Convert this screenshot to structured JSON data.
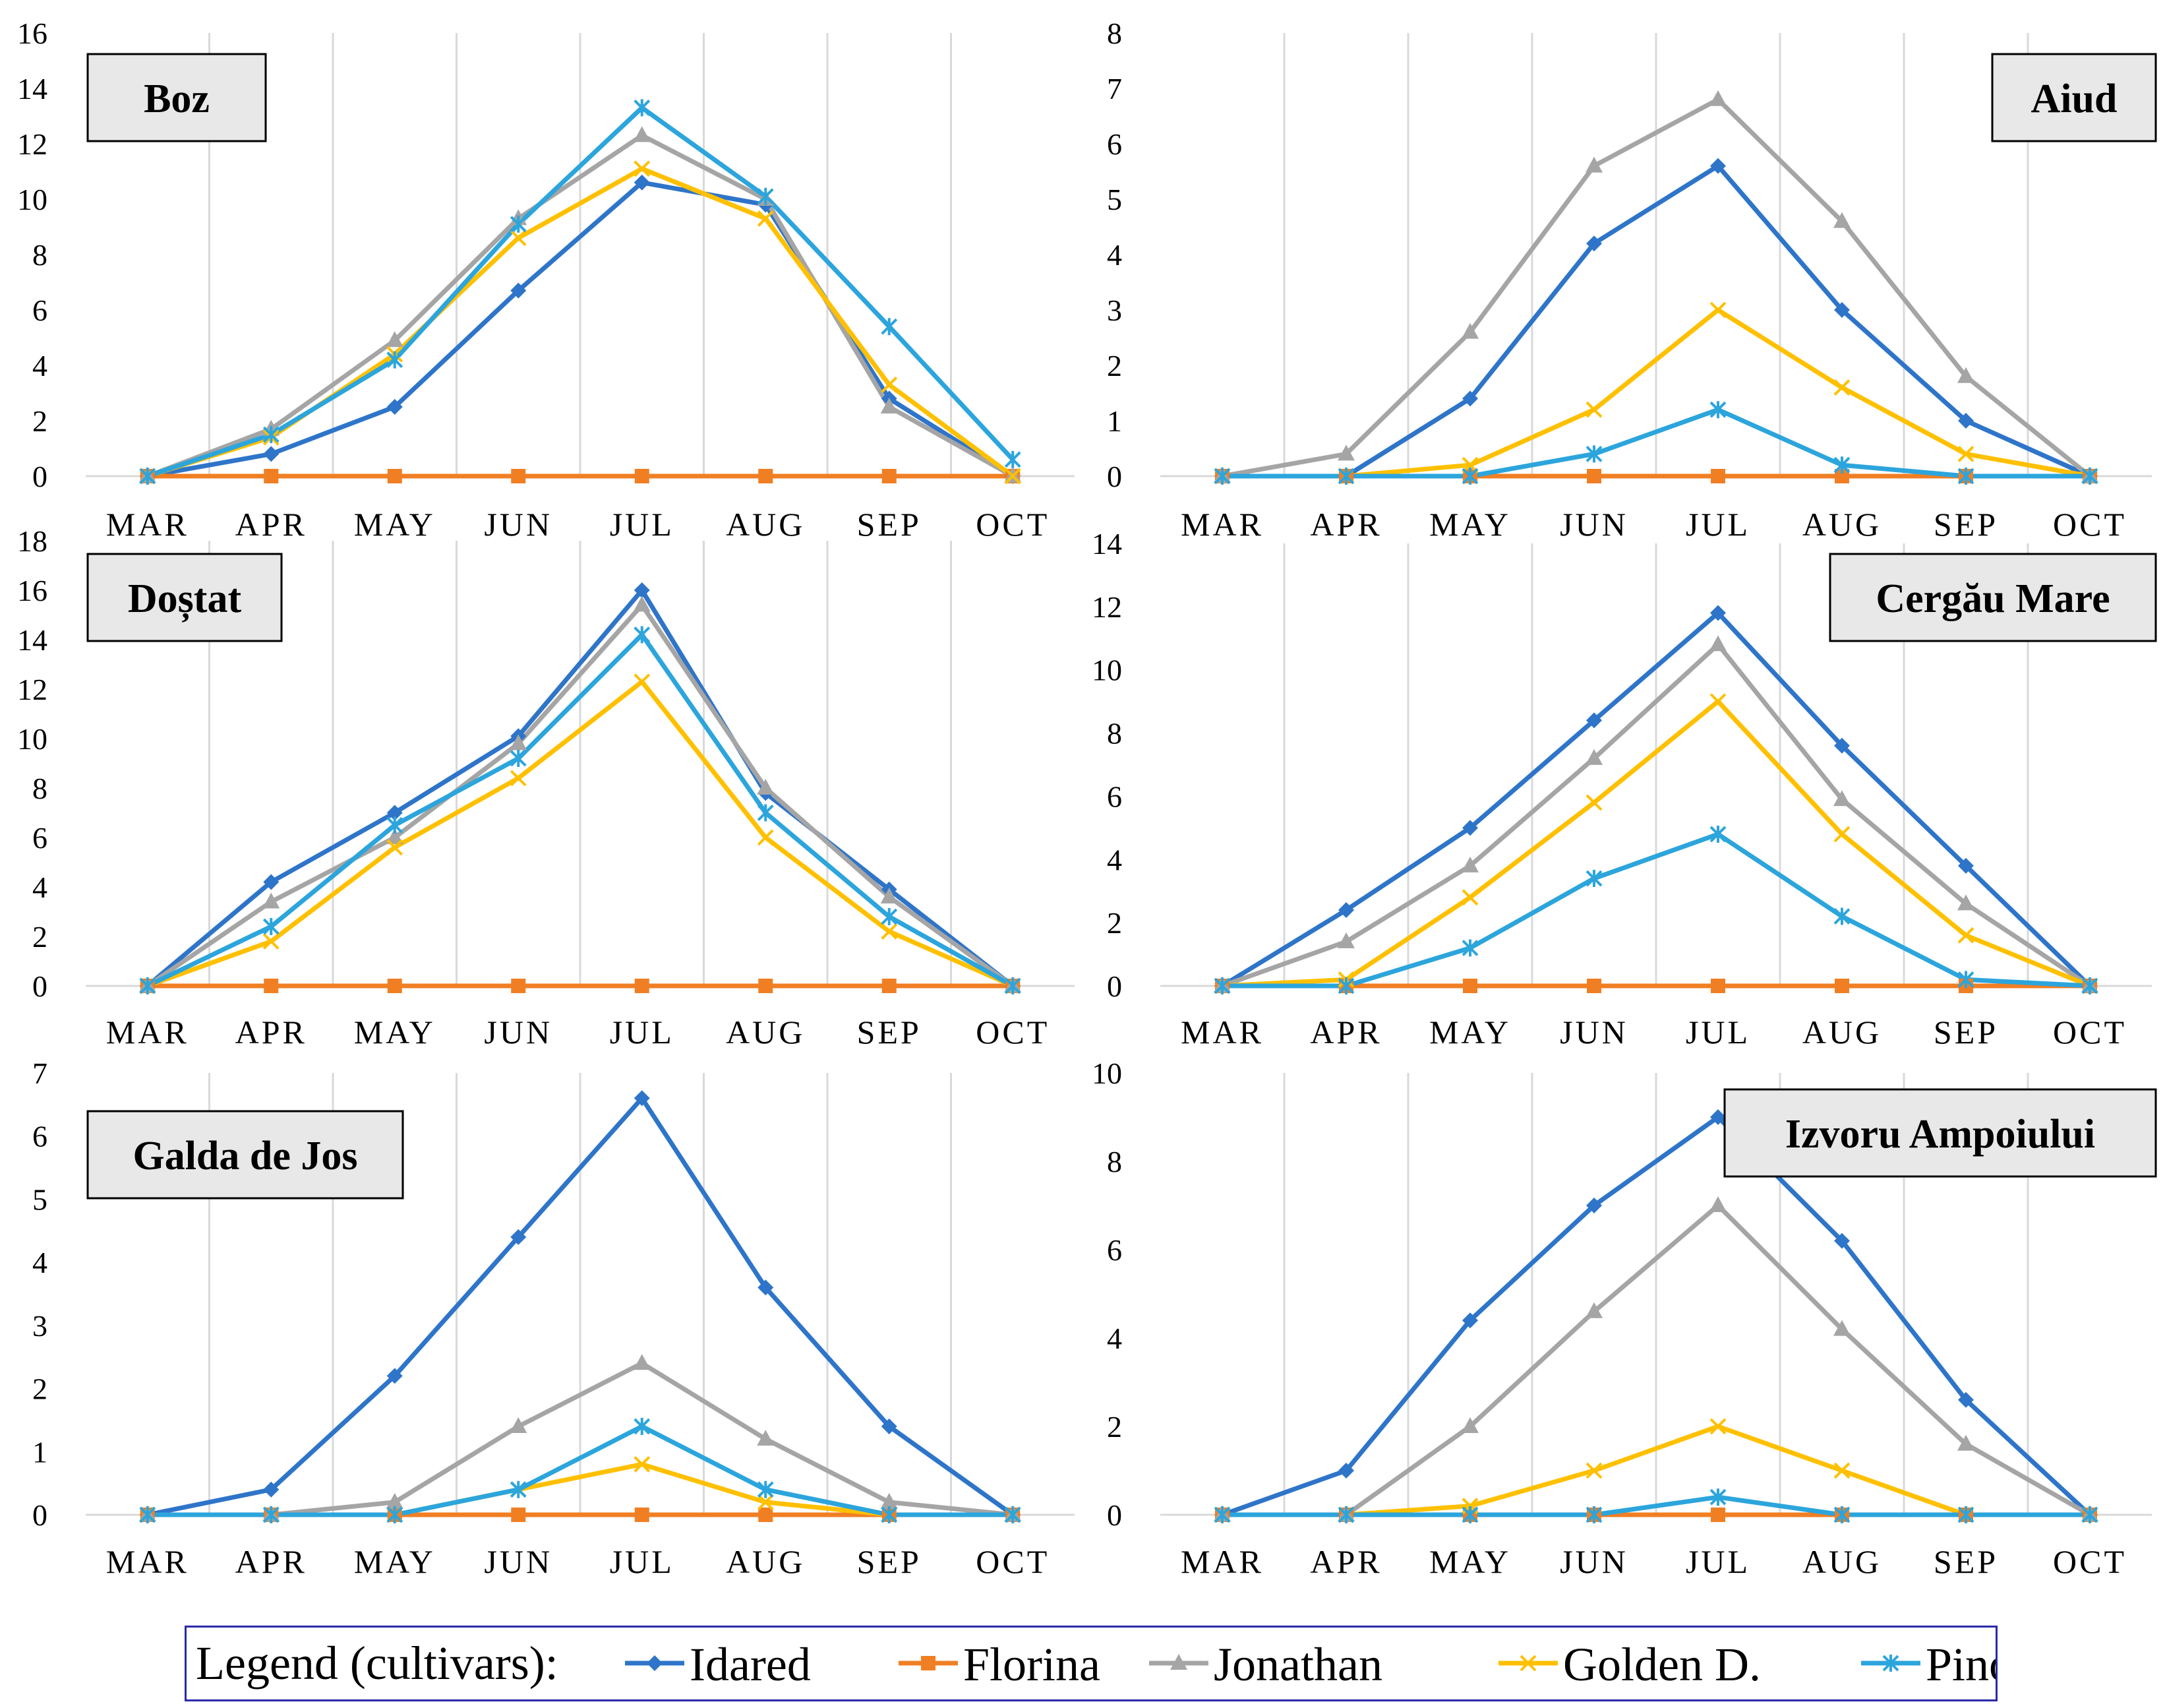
{
  "legend": {
    "label": "Legend (cultivars):",
    "items": [
      {
        "name": "Idared",
        "color": "#2E75C9",
        "marker": "diamond"
      },
      {
        "name": "Florina",
        "color": "#F07F24",
        "marker": "square"
      },
      {
        "name": "Jonathan",
        "color": "#A5A5A5",
        "marker": "triangle"
      },
      {
        "name": "Golden D.",
        "color": "#FFC000",
        "marker": "x"
      },
      {
        "name": "Pinova",
        "color": "#2CA5DC",
        "marker": "star"
      }
    ]
  },
  "chart_data": [
    {
      "type": "line",
      "title": "Boz",
      "categories": [
        "MAR",
        "APR",
        "MAY",
        "JUN",
        "JUL",
        "AUG",
        "SEP",
        "OCT"
      ],
      "ylim": [
        0,
        16
      ],
      "yticks": [
        "0",
        "2",
        "4",
        "6",
        "8",
        "10",
        "12",
        "14",
        "16"
      ],
      "series": [
        {
          "name": "Idared",
          "values": [
            0,
            0.8,
            2.5,
            6.7,
            10.6,
            9.8,
            2.8,
            0
          ]
        },
        {
          "name": "Florina",
          "values": [
            0,
            0,
            0,
            0,
            0,
            0,
            0,
            0
          ]
        },
        {
          "name": "Jonathan",
          "values": [
            0,
            1.7,
            4.9,
            9.3,
            12.3,
            10.0,
            2.5,
            0
          ]
        },
        {
          "name": "Golden D.",
          "values": [
            0,
            1.4,
            4.4,
            8.6,
            11.1,
            9.3,
            3.3,
            0
          ]
        },
        {
          "name": "Pinova",
          "values": [
            0,
            1.5,
            4.2,
            9.1,
            13.3,
            10.1,
            5.4,
            0.6
          ]
        }
      ]
    },
    {
      "type": "line",
      "title": "Aiud",
      "categories": [
        "MAR",
        "APR",
        "MAY",
        "JUN",
        "JUL",
        "AUG",
        "SEP",
        "OCT"
      ],
      "ylim": [
        0,
        8
      ],
      "yticks": [
        "0",
        "1",
        "2",
        "3",
        "4",
        "5",
        "6",
        "7",
        "8"
      ],
      "series": [
        {
          "name": "Idared",
          "values": [
            0,
            0,
            1.4,
            4.2,
            5.6,
            3.0,
            1.0,
            0
          ]
        },
        {
          "name": "Florina",
          "values": [
            0,
            0,
            0,
            0,
            0,
            0,
            0,
            0
          ]
        },
        {
          "name": "Jonathan",
          "values": [
            0,
            0.4,
            2.6,
            5.6,
            6.8,
            4.6,
            1.8,
            0
          ]
        },
        {
          "name": "Golden D.",
          "values": [
            0,
            0,
            0.2,
            1.2,
            3.0,
            1.6,
            0.4,
            0
          ]
        },
        {
          "name": "Pinova",
          "values": [
            0,
            0,
            0,
            0.4,
            1.2,
            0.2,
            0,
            0
          ]
        }
      ]
    },
    {
      "type": "line",
      "title": "Doștat",
      "categories": [
        "MAR",
        "APR",
        "MAY",
        "JUN",
        "JUL",
        "AUG",
        "SEP",
        "OCT"
      ],
      "ylim": [
        0,
        18
      ],
      "yticks": [
        "0",
        "2",
        "4",
        "6",
        "8",
        "10",
        "12",
        "14",
        "16",
        "18"
      ],
      "series": [
        {
          "name": "Idared",
          "values": [
            0,
            4.2,
            7.0,
            10.1,
            16.0,
            7.8,
            3.9,
            0
          ]
        },
        {
          "name": "Florina",
          "values": [
            0,
            0,
            0,
            0,
            0,
            0,
            0,
            0
          ]
        },
        {
          "name": "Jonathan",
          "values": [
            0,
            3.4,
            6.0,
            9.8,
            15.4,
            8.0,
            3.6,
            0
          ]
        },
        {
          "name": "Golden D.",
          "values": [
            0,
            1.8,
            5.6,
            8.4,
            12.3,
            6.0,
            2.2,
            0
          ]
        },
        {
          "name": "Pinova",
          "values": [
            0,
            2.4,
            6.5,
            9.2,
            14.2,
            7.0,
            2.8,
            0
          ]
        }
      ]
    },
    {
      "type": "line",
      "title": "Cergău Mare",
      "categories": [
        "MAR",
        "APR",
        "MAY",
        "JUN",
        "JUL",
        "AUG",
        "SEP",
        "OCT"
      ],
      "ylim": [
        0,
        14
      ],
      "yticks": [
        "0",
        "2",
        "4",
        "6",
        "8",
        "10",
        "12",
        "14"
      ],
      "series": [
        {
          "name": "Idared",
          "values": [
            0,
            2.4,
            5.0,
            8.4,
            11.8,
            7.6,
            3.8,
            0
          ]
        },
        {
          "name": "Florina",
          "values": [
            0,
            0,
            0,
            0,
            0,
            0,
            0,
            0
          ]
        },
        {
          "name": "Jonathan",
          "values": [
            0,
            1.4,
            3.8,
            7.2,
            10.8,
            5.9,
            2.6,
            0
          ]
        },
        {
          "name": "Golden D.",
          "values": [
            0,
            0.2,
            2.8,
            5.8,
            9.0,
            4.8,
            1.6,
            0
          ]
        },
        {
          "name": "Pinova",
          "values": [
            0,
            0,
            1.2,
            3.4,
            4.8,
            2.2,
            0.2,
            0
          ]
        }
      ]
    },
    {
      "type": "line",
      "title": "Galda de Jos",
      "categories": [
        "MAR",
        "APR",
        "MAY",
        "JUN",
        "JUL",
        "AUG",
        "SEP",
        "OCT"
      ],
      "ylim": [
        0,
        7
      ],
      "yticks": [
        "0",
        "1",
        "2",
        "3",
        "4",
        "5",
        "6",
        "7"
      ],
      "series": [
        {
          "name": "Idared",
          "values": [
            0,
            0.4,
            2.2,
            4.4,
            6.6,
            3.6,
            1.4,
            0
          ]
        },
        {
          "name": "Florina",
          "values": [
            0,
            0,
            0,
            0,
            0,
            0,
            0,
            0
          ]
        },
        {
          "name": "Jonathan",
          "values": [
            0,
            0,
            0.2,
            1.4,
            2.4,
            1.2,
            0.2,
            0
          ]
        },
        {
          "name": "Golden D.",
          "values": [
            0,
            0,
            0,
            0.4,
            0.8,
            0.2,
            0,
            0
          ]
        },
        {
          "name": "Pinova",
          "values": [
            0,
            0,
            0,
            0.4,
            1.4,
            0.4,
            0,
            0
          ]
        }
      ]
    },
    {
      "type": "line",
      "title": "Izvoru Ampoiului",
      "categories": [
        "MAR",
        "APR",
        "MAY",
        "JUN",
        "JUL",
        "AUG",
        "SEP",
        "OCT"
      ],
      "ylim": [
        0,
        10
      ],
      "yticks": [
        "0",
        "2",
        "4",
        "6",
        "8",
        "10"
      ],
      "series": [
        {
          "name": "Idared",
          "values": [
            0,
            1.0,
            4.4,
            7.0,
            9.0,
            6.2,
            2.6,
            0
          ]
        },
        {
          "name": "Florina",
          "values": [
            0,
            0,
            0,
            0,
            0,
            0,
            0,
            0
          ]
        },
        {
          "name": "Jonathan",
          "values": [
            0,
            0,
            2.0,
            4.6,
            7.0,
            4.2,
            1.6,
            0
          ]
        },
        {
          "name": "Golden D.",
          "values": [
            0,
            0,
            0.2,
            1.0,
            2.0,
            1.0,
            0,
            0
          ]
        },
        {
          "name": "Pinova",
          "values": [
            0,
            0,
            0,
            0,
            0.4,
            0,
            0,
            0
          ]
        }
      ]
    }
  ]
}
